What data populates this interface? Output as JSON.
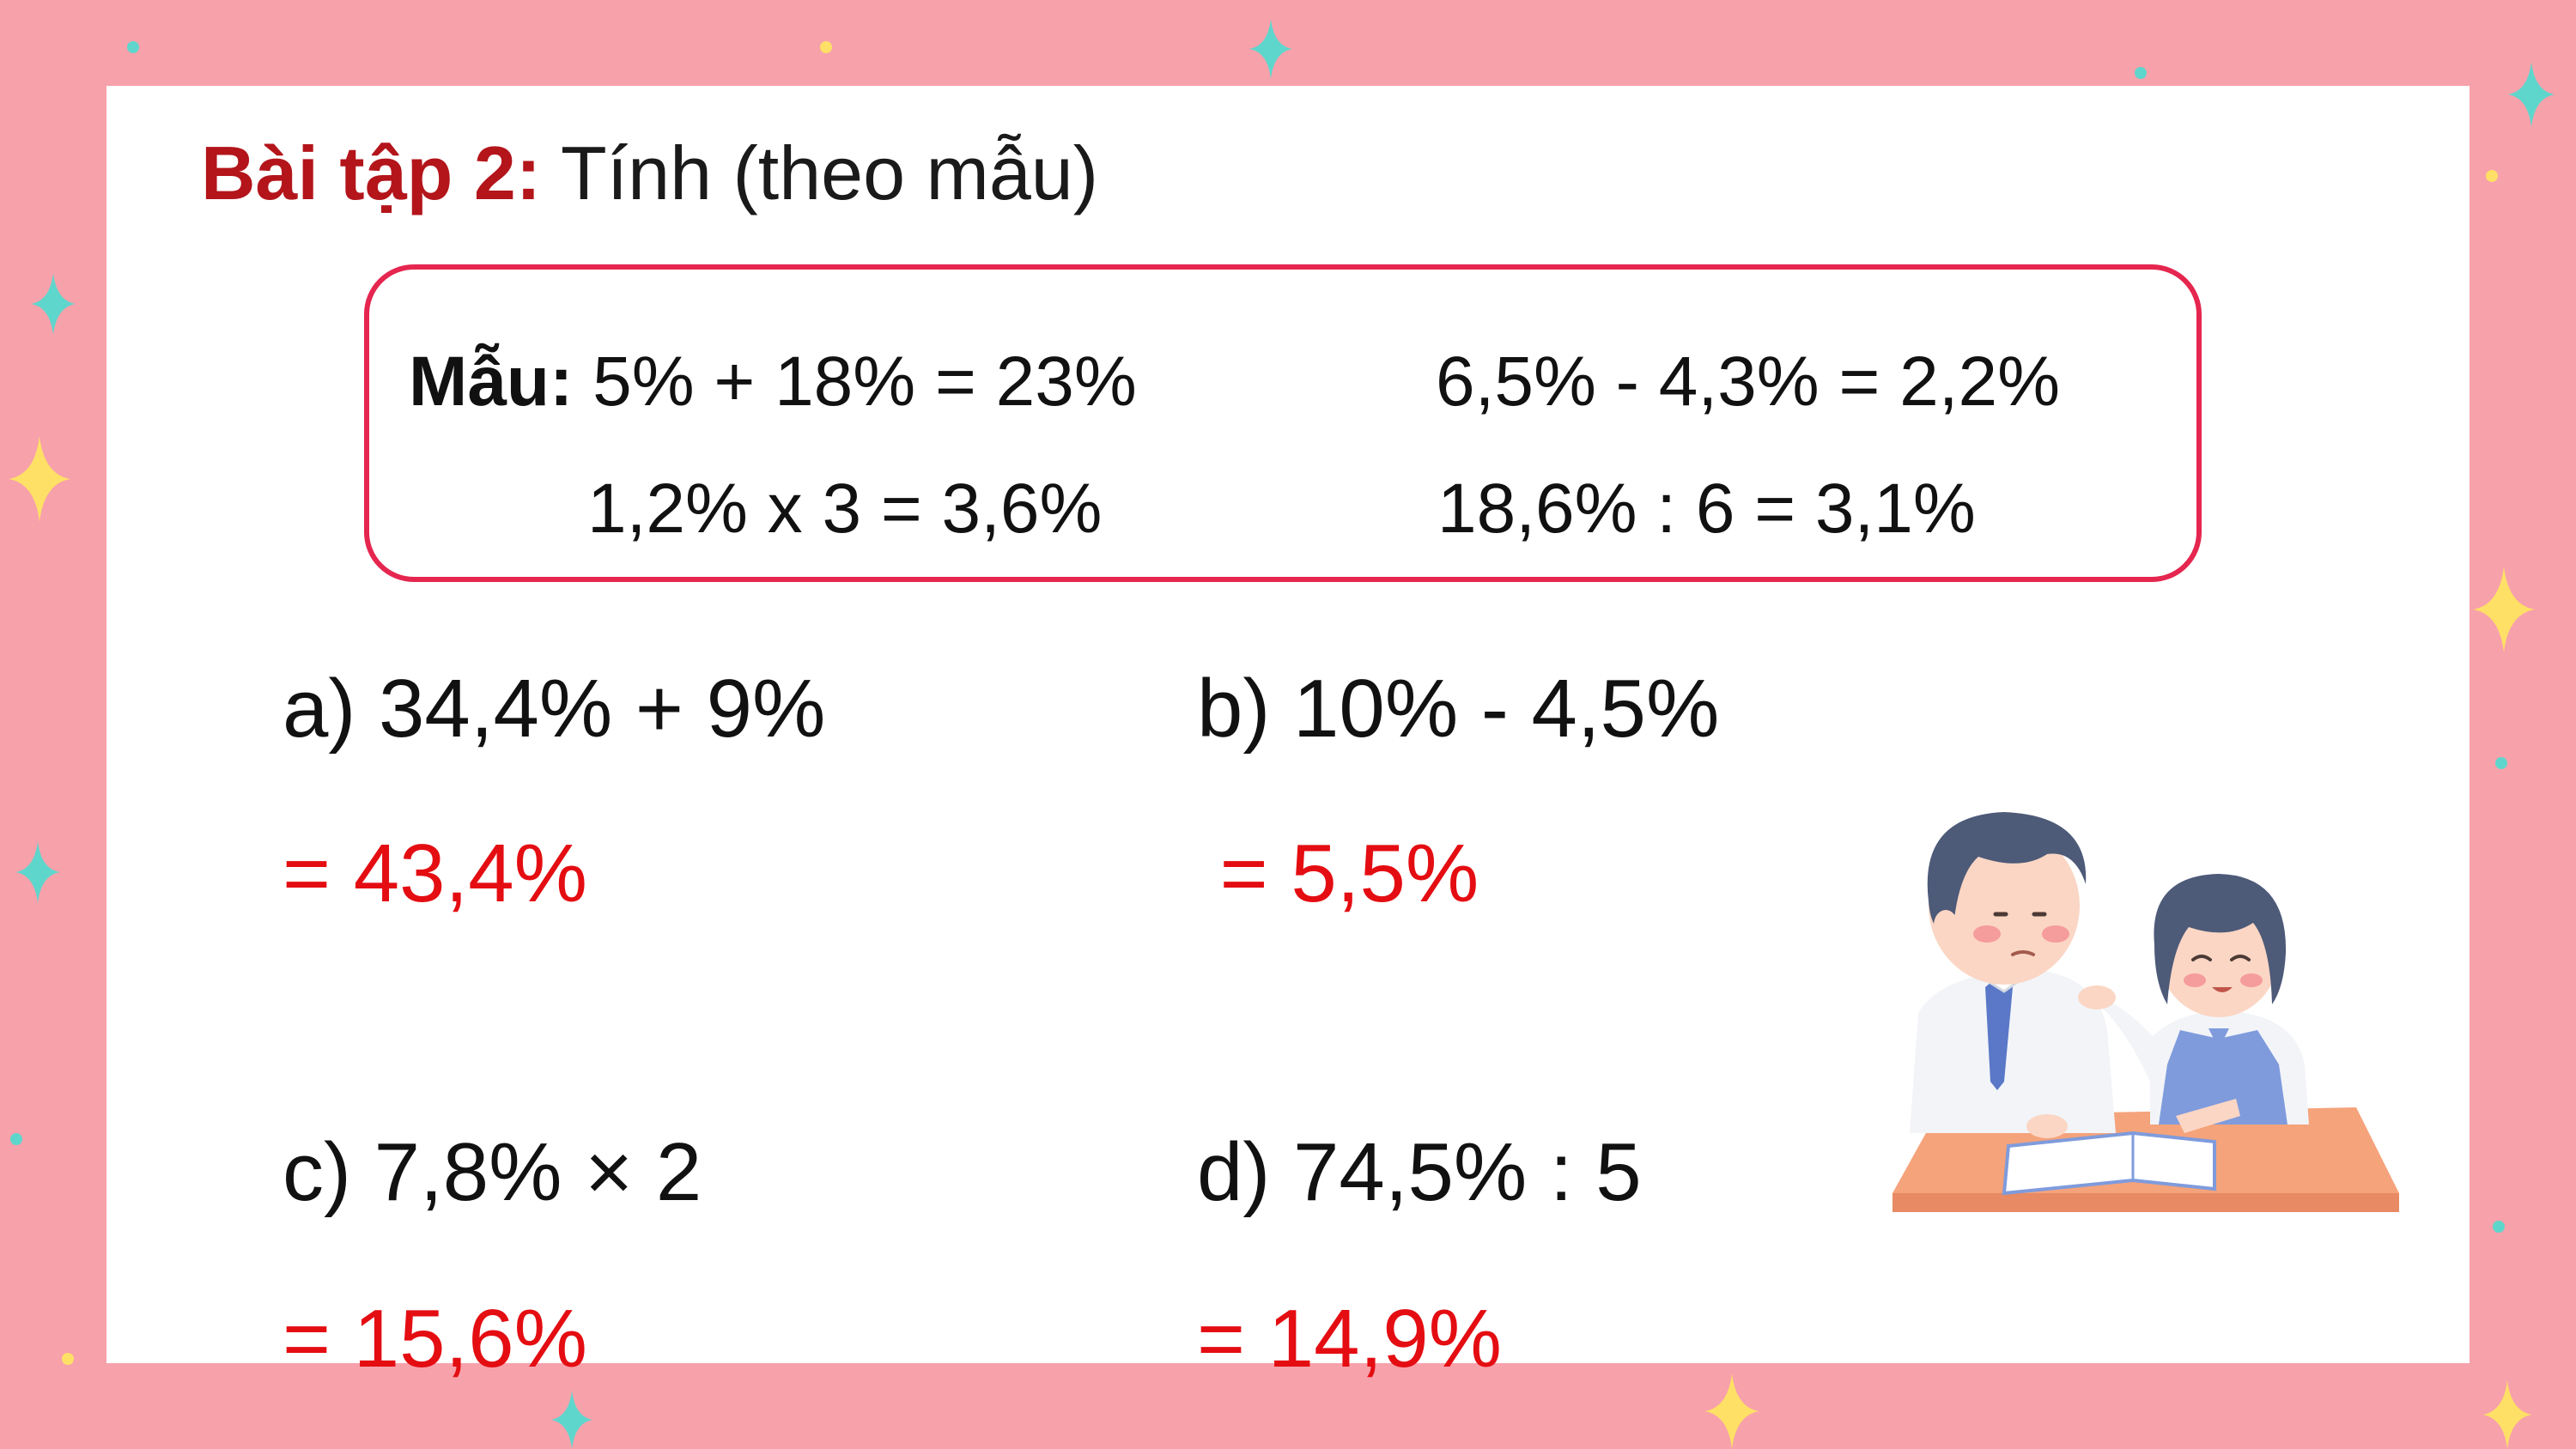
{
  "title": {
    "label": "Bài tập 2:",
    "text": "Tính (theo mẫu)"
  },
  "example": {
    "label": "Mẫu:",
    "items": [
      "5% + 18% = 23%",
      "6,5% - 4,3% = 2,2%",
      "1,2% x 3 = 3,6%",
      "18,6% : 6 = 3,1%"
    ]
  },
  "problems": [
    {
      "expr": "a) 34,4% + 9%",
      "answer": "= 43,4%"
    },
    {
      "expr": "b) 10% - 4,5%",
      "answer": " = 5,5%"
    },
    {
      "expr": "c) 7,8% × 2",
      "answer": "= 15,6%"
    },
    {
      "expr": "d) 74,5% : 5",
      "answer": "= 14,9%"
    }
  ],
  "colors": {
    "background": "#f7a1ab",
    "title_label": "#b3151b",
    "box_border": "#e5264f",
    "answer": "#e40d12"
  },
  "decorations": {
    "sparkle_icon": "four-point-star-icon",
    "illustration": "students-reading-illustration"
  }
}
